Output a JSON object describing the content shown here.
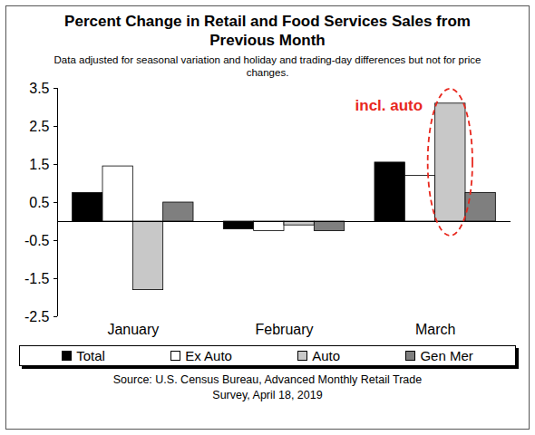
{
  "chart_data": {
    "type": "bar",
    "title": "Percent Change in Retail and Food Services Sales from Previous Month",
    "subtitle": "Data adjusted for seasonal variation and holiday and trading-day differences but not for price changes.",
    "categories": [
      "January",
      "February",
      "March"
    ],
    "series": [
      {
        "name": "Total",
        "color": "#000000",
        "values": [
          0.75,
          -0.2,
          1.55
        ]
      },
      {
        "name": "Ex Auto",
        "color": "#ffffff",
        "values": [
          1.45,
          -0.25,
          1.2
        ]
      },
      {
        "name": "Auto",
        "color": "#c8c8c8",
        "values": [
          -1.8,
          -0.1,
          3.1
        ]
      },
      {
        "name": "Gen Mer",
        "color": "#7f7f7f",
        "values": [
          0.5,
          -0.25,
          0.75
        ]
      }
    ],
    "ylim": [
      -2.5,
      3.5
    ],
    "yticks": [
      -2.5,
      -1.5,
      -0.5,
      0.5,
      1.5,
      2.5,
      3.5
    ],
    "grid": false,
    "legend": "bottom",
    "annotations": [
      {
        "text": "incl. auto",
        "category": "March",
        "series": "Auto",
        "color": "#e8281e"
      }
    ],
    "source": "Source: U.S. Census Bureau, Advanced Monthly Retail Trade Survey, April 18, 2019"
  }
}
